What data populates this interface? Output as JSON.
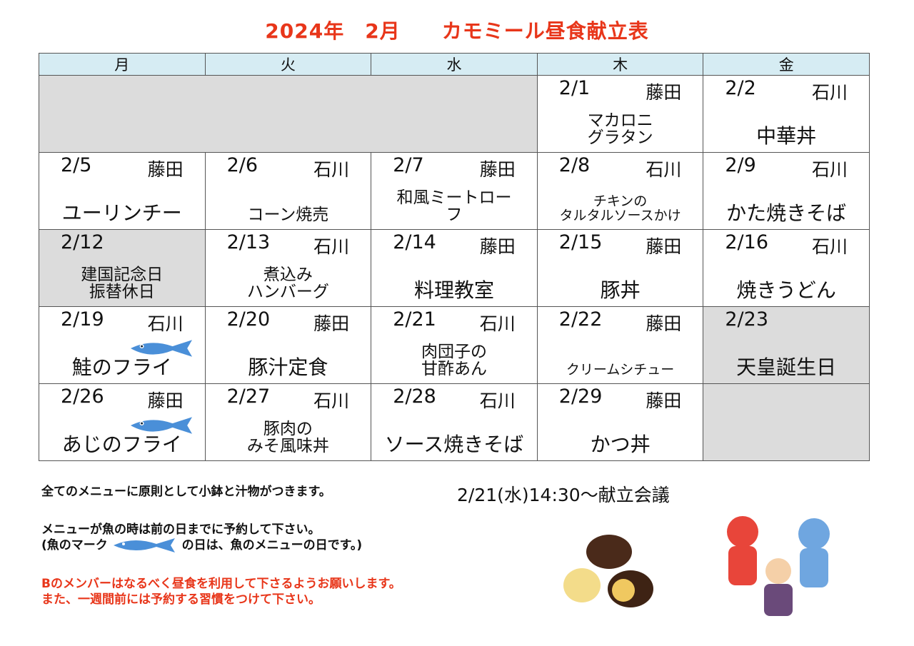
{
  "title": "2024年　2月　　カモミール昼食献立表",
  "weekdays": [
    "月",
    "火",
    "水",
    "木",
    "金"
  ],
  "rows": [
    [
      {
        "gray": true,
        "span": 3
      },
      {
        "date": "2/1",
        "person": "藤田",
        "menu": "マカロニ\nグラタン",
        "size": "mid"
      },
      {
        "date": "2/2",
        "person": "石川",
        "menu": "中華丼",
        "size": "big"
      }
    ],
    [
      {
        "date": "2/5",
        "person": "藤田",
        "menu": "ユーリンチー",
        "size": "big"
      },
      {
        "date": "2/6",
        "person": "石川",
        "menu": "コーン焼売",
        "size": "mid"
      },
      {
        "date": "2/7",
        "person": "藤田",
        "menu": "和風ミートロー\nフ",
        "size": "mid"
      },
      {
        "date": "2/8",
        "person": "石川",
        "menu": "チキンの\nタルタルソースかけ",
        "size": "small"
      },
      {
        "date": "2/9",
        "person": "石川",
        "menu": "かた焼きそば",
        "size": "big"
      }
    ],
    [
      {
        "date": "2/12",
        "person": "",
        "menu": "建国記念日\n振替休日",
        "size": "mid",
        "gray": true
      },
      {
        "date": "2/13",
        "person": "石川",
        "menu": "煮込み\nハンバーグ",
        "size": "mid"
      },
      {
        "date": "2/14",
        "person": "藤田",
        "menu": "料理教室",
        "size": "big"
      },
      {
        "date": "2/15",
        "person": "藤田",
        "menu": "豚丼",
        "size": "big"
      },
      {
        "date": "2/16",
        "person": "石川",
        "menu": "焼きうどん",
        "size": "big"
      }
    ],
    [
      {
        "date": "2/19",
        "person": "石川",
        "menu": "鮭のフライ",
        "size": "big",
        "fish": true
      },
      {
        "date": "2/20",
        "person": "藤田",
        "menu": "豚汁定食",
        "size": "big"
      },
      {
        "date": "2/21",
        "person": "石川",
        "menu": "肉団子の\n甘酢あん",
        "size": "mid"
      },
      {
        "date": "2/22",
        "person": "藤田",
        "menu": "クリームシチュー",
        "size": "small"
      },
      {
        "date": "2/23",
        "person": "",
        "menu": "天皇誕生日",
        "size": "big",
        "gray": true
      }
    ],
    [
      {
        "date": "2/26",
        "person": "藤田",
        "menu": "あじのフライ",
        "size": "big",
        "fish": true
      },
      {
        "date": "2/27",
        "person": "石川",
        "menu": "豚肉の\nみそ風味丼",
        "size": "mid"
      },
      {
        "date": "2/28",
        "person": "石川",
        "menu": "ソース焼きそば",
        "size": "big"
      },
      {
        "date": "2/29",
        "person": "藤田",
        "menu": "かつ丼",
        "size": "big"
      },
      {
        "gray": true
      }
    ]
  ],
  "notes": {
    "line1": "全てのメニューに原則として小鉢と汁物がつきます。",
    "line2": "メニューが魚の時は前の日までに予約して下さい。",
    "line3a": "(魚のマーク",
    "line3b": "の日は、魚のメニューの日です。)",
    "line4": "Bのメンバーはなるべく昼食を利用して下さるようお願いします。",
    "line5": "また、一週間前には予約する習慣をつけて下さい。"
  },
  "meeting": "2/21(水)14:30～献立会議",
  "colors": {
    "title": "#e8361a",
    "header": "#d6ecf3",
    "holiday": "#dcdcdc",
    "fish": "#4a8fd8"
  }
}
